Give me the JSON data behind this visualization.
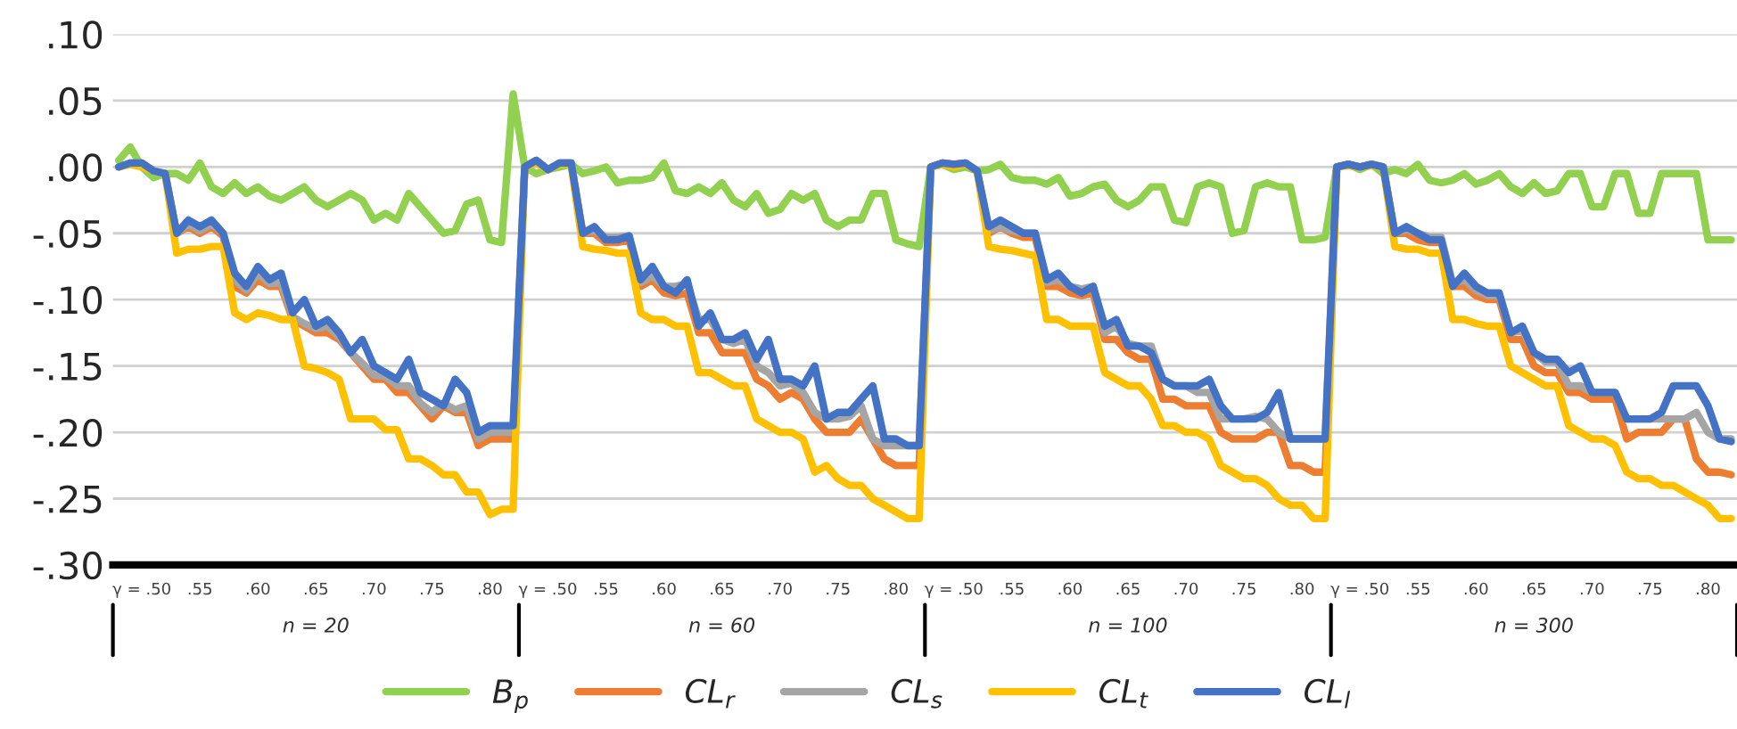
{
  "chart_data": {
    "type": "line",
    "categories": [
      null,
      null,
      "γ = .50",
      null,
      null,
      null,
      null,
      ".55",
      null,
      null,
      null,
      null,
      ".60",
      null,
      null,
      null,
      null,
      ".65",
      null,
      null,
      null,
      null,
      ".70",
      null,
      null,
      null,
      null,
      ".75",
      null,
      null,
      null,
      null,
      ".80",
      null,
      null,
      null,
      null,
      "γ = .50",
      null,
      null,
      null,
      null,
      ".55",
      null,
      null,
      null,
      null,
      ".60",
      null,
      null,
      null,
      null,
      ".65",
      null,
      null,
      null,
      null,
      ".70",
      null,
      null,
      null,
      null,
      ".75",
      null,
      null,
      null,
      null,
      ".80",
      null,
      null,
      null,
      null,
      "γ = .50",
      null,
      null,
      null,
      null,
      ".55",
      null,
      null,
      null,
      null,
      ".60",
      null,
      null,
      null,
      null,
      ".65",
      null,
      null,
      null,
      null,
      ".70",
      null,
      null,
      null,
      null,
      ".75",
      null,
      null,
      null,
      null,
      ".80",
      null,
      null,
      null,
      null,
      "γ = .50",
      null,
      null,
      null,
      null,
      ".55",
      null,
      null,
      null,
      null,
      ".60",
      null,
      null,
      null,
      null,
      ".65",
      null,
      null,
      null,
      null,
      ".70",
      null,
      null,
      null,
      null,
      ".75",
      null,
      null,
      null,
      null,
      ".80",
      null,
      null
    ],
    "ylim": [
      -0.3,
      0.1
    ],
    "yticks": [
      {
        "value": 0.1,
        "label": ".10"
      },
      {
        "value": 0.05,
        "label": ".05"
      },
      {
        "value": 0.0,
        "label": ".00"
      },
      {
        "value": -0.05,
        "label": "-.05"
      },
      {
        "value": -0.1,
        "label": "-.10"
      },
      {
        "value": -0.15,
        "label": "-.15"
      },
      {
        "value": -0.2,
        "label": "-.20"
      },
      {
        "value": -0.25,
        "label": "-.25"
      },
      {
        "value": -0.3,
        "label": "-.30"
      }
    ],
    "grid": "y",
    "legend": "bottom",
    "marker": "none",
    "line_style": "solid",
    "annotations": [
      "n = 20",
      "n = 60",
      "n = 100",
      "n = 300"
    ],
    "series": [
      {
        "name": "B$_{p}$",
        "color": "#92d050",
        "values": [
          0.005,
          0.015,
          0.0,
          -0.008,
          -0.005,
          -0.005,
          -0.01,
          0.003,
          -0.015,
          -0.02,
          -0.012,
          -0.02,
          -0.015,
          -0.022,
          -0.025,
          -0.02,
          -0.015,
          -0.025,
          -0.03,
          -0.025,
          -0.02,
          -0.025,
          -0.04,
          -0.035,
          -0.04,
          -0.02,
          -0.03,
          -0.04,
          -0.05,
          -0.048,
          -0.028,
          -0.025,
          -0.055,
          -0.057,
          0.055,
          0.0,
          -0.005,
          -0.002,
          0.0,
          0.002,
          -0.005,
          -0.003,
          0.0,
          -0.012,
          -0.01,
          -0.01,
          -0.008,
          0.003,
          -0.018,
          -0.02,
          -0.015,
          -0.02,
          -0.012,
          -0.025,
          -0.03,
          -0.02,
          -0.035,
          -0.032,
          -0.02,
          -0.025,
          -0.02,
          -0.04,
          -0.045,
          -0.04,
          -0.04,
          -0.02,
          -0.02,
          -0.055,
          -0.058,
          -0.06,
          0.0,
          0.002,
          -0.002,
          0.0,
          -0.003,
          -0.002,
          0.002,
          -0.008,
          -0.01,
          -0.01,
          -0.013,
          -0.008,
          -0.022,
          -0.02,
          -0.015,
          -0.013,
          -0.025,
          -0.03,
          -0.025,
          -0.015,
          -0.015,
          -0.04,
          -0.042,
          -0.015,
          -0.012,
          -0.015,
          -0.05,
          -0.048,
          -0.015,
          -0.012,
          -0.015,
          -0.015,
          -0.055,
          -0.055,
          -0.053,
          0.0,
          0.002,
          -0.002,
          0.002,
          -0.005,
          -0.002,
          -0.005,
          0.002,
          -0.01,
          -0.012,
          -0.01,
          -0.005,
          -0.013,
          -0.01,
          -0.005,
          -0.015,
          -0.02,
          -0.012,
          -0.02,
          -0.018,
          -0.005,
          -0.005,
          -0.03,
          -0.03,
          -0.005,
          -0.005,
          -0.035,
          -0.035,
          -0.005,
          -0.005,
          -0.005,
          -0.005,
          -0.055,
          -0.055,
          -0.055
        ]
      },
      {
        "name": "CL$_{r}$",
        "color": "#ed7d31",
        "values": [
          null,
          null,
          null,
          null,
          -0.005,
          -0.05,
          -0.045,
          -0.05,
          -0.045,
          -0.052,
          -0.09,
          -0.095,
          -0.085,
          -0.09,
          -0.09,
          -0.115,
          -0.12,
          -0.125,
          -0.125,
          -0.13,
          -0.14,
          -0.15,
          -0.16,
          -0.16,
          -0.17,
          -0.17,
          -0.18,
          -0.19,
          -0.18,
          -0.185,
          -0.185,
          -0.21,
          -0.205,
          -0.205,
          -0.205,
          0.0,
          0.005,
          -0.002,
          0.003,
          0.003,
          -0.05,
          -0.05,
          -0.057,
          -0.057,
          -0.055,
          -0.09,
          -0.085,
          -0.095,
          -0.097,
          -0.095,
          -0.125,
          -0.125,
          -0.14,
          -0.14,
          -0.14,
          -0.16,
          -0.165,
          -0.175,
          -0.17,
          -0.175,
          -0.19,
          -0.2,
          -0.2,
          -0.2,
          -0.19,
          -0.205,
          -0.22,
          -0.225,
          -0.225,
          -0.225,
          0.0,
          0.003,
          0.002,
          0.003,
          -0.003,
          -0.05,
          -0.045,
          -0.05,
          -0.053,
          -0.053,
          -0.09,
          -0.09,
          -0.095,
          -0.097,
          -0.095,
          -0.13,
          -0.13,
          -0.14,
          -0.145,
          -0.145,
          -0.175,
          -0.175,
          -0.18,
          -0.18,
          -0.18,
          -0.2,
          -0.205,
          -0.205,
          -0.205,
          -0.2,
          -0.2,
          -0.225,
          -0.225,
          -0.23,
          -0.23,
          0.0,
          0.002,
          0.0,
          0.002,
          0.0,
          -0.05,
          -0.05,
          -0.055,
          -0.057,
          -0.057,
          -0.09,
          -0.09,
          -0.097,
          -0.1,
          -0.1,
          -0.13,
          -0.13,
          -0.15,
          -0.155,
          -0.155,
          -0.17,
          -0.17,
          -0.175,
          -0.175,
          -0.175,
          -0.205,
          -0.2,
          -0.2,
          -0.2,
          -0.19,
          -0.19,
          -0.22,
          -0.23,
          -0.23,
          -0.232
        ]
      },
      {
        "name": "CL$_{s}$",
        "color": "#a5a5a5",
        "values": [
          0.0,
          0.003,
          0.003,
          -0.003,
          -0.005,
          -0.05,
          -0.043,
          -0.048,
          -0.043,
          -0.05,
          -0.085,
          -0.093,
          -0.08,
          -0.088,
          -0.087,
          -0.113,
          -0.118,
          -0.122,
          -0.12,
          -0.128,
          -0.14,
          -0.148,
          -0.157,
          -0.158,
          -0.165,
          -0.165,
          -0.178,
          -0.185,
          -0.178,
          -0.183,
          -0.18,
          -0.205,
          -0.2,
          -0.2,
          -0.2,
          0.0,
          0.005,
          -0.002,
          0.003,
          0.003,
          -0.05,
          -0.048,
          -0.053,
          -0.053,
          -0.052,
          -0.087,
          -0.082,
          -0.09,
          -0.09,
          -0.088,
          -0.115,
          -0.115,
          -0.13,
          -0.133,
          -0.13,
          -0.15,
          -0.155,
          -0.165,
          -0.163,
          -0.17,
          -0.185,
          -0.19,
          -0.19,
          -0.188,
          -0.18,
          -0.205,
          -0.21,
          -0.21,
          -0.21,
          -0.21,
          0.0,
          0.003,
          0.002,
          0.003,
          -0.003,
          -0.048,
          -0.045,
          -0.048,
          -0.05,
          -0.05,
          -0.087,
          -0.085,
          -0.09,
          -0.092,
          -0.09,
          -0.125,
          -0.12,
          -0.133,
          -0.135,
          -0.135,
          -0.16,
          -0.165,
          -0.165,
          -0.17,
          -0.17,
          -0.19,
          -0.19,
          -0.19,
          -0.188,
          -0.19,
          -0.2,
          -0.205,
          -0.205,
          -0.205,
          -0.205,
          0.0,
          0.002,
          0.0,
          0.002,
          0.0,
          -0.05,
          -0.047,
          -0.05,
          -0.053,
          -0.053,
          -0.088,
          -0.085,
          -0.093,
          -0.097,
          -0.097,
          -0.125,
          -0.123,
          -0.14,
          -0.147,
          -0.147,
          -0.165,
          -0.165,
          -0.17,
          -0.17,
          -0.17,
          -0.19,
          -0.19,
          -0.19,
          -0.19,
          -0.19,
          -0.19,
          -0.185,
          -0.2,
          -0.205,
          -0.205
        ]
      },
      {
        "name": "CL$_{t}$",
        "color": "#ffc000",
        "values": [
          0.0,
          0.002,
          0.0,
          -0.003,
          -0.005,
          -0.065,
          -0.062,
          -0.062,
          -0.06,
          -0.06,
          -0.11,
          -0.115,
          -0.11,
          -0.112,
          -0.115,
          -0.115,
          -0.15,
          -0.152,
          -0.155,
          -0.16,
          -0.19,
          -0.19,
          -0.19,
          -0.198,
          -0.198,
          -0.22,
          -0.22,
          -0.225,
          -0.232,
          -0.232,
          -0.245,
          -0.245,
          -0.262,
          -0.258,
          -0.258,
          0.0,
          0.003,
          -0.002,
          0.002,
          0.002,
          -0.06,
          -0.062,
          -0.063,
          -0.065,
          -0.065,
          -0.11,
          -0.115,
          -0.115,
          -0.12,
          -0.12,
          -0.155,
          -0.155,
          -0.16,
          -0.165,
          -0.165,
          -0.19,
          -0.195,
          -0.2,
          -0.2,
          -0.205,
          -0.23,
          -0.225,
          -0.235,
          -0.24,
          -0.24,
          -0.25,
          -0.255,
          -0.26,
          -0.265,
          -0.265,
          0.0,
          0.002,
          0.0,
          0.002,
          -0.003,
          -0.06,
          -0.062,
          -0.063,
          -0.065,
          -0.067,
          -0.115,
          -0.115,
          -0.12,
          -0.12,
          -0.12,
          -0.155,
          -0.16,
          -0.165,
          -0.165,
          -0.175,
          -0.195,
          -0.195,
          -0.2,
          -0.2,
          -0.205,
          -0.225,
          -0.23,
          -0.235,
          -0.235,
          -0.24,
          -0.25,
          -0.255,
          -0.255,
          -0.265,
          -0.265,
          0.0,
          0.001,
          0.0,
          0.001,
          0.0,
          -0.06,
          -0.062,
          -0.062,
          -0.065,
          -0.065,
          -0.115,
          -0.115,
          -0.118,
          -0.12,
          -0.12,
          -0.15,
          -0.155,
          -0.16,
          -0.165,
          -0.165,
          -0.195,
          -0.2,
          -0.205,
          -0.205,
          -0.21,
          -0.23,
          -0.235,
          -0.235,
          -0.24,
          -0.24,
          -0.245,
          -0.25,
          -0.255,
          -0.265,
          -0.265
        ]
      },
      {
        "name": "CL$_{l}$",
        "color": "#4472c4",
        "values": [
          0.0,
          0.003,
          0.003,
          -0.003,
          -0.005,
          -0.05,
          -0.04,
          -0.045,
          -0.04,
          -0.05,
          -0.08,
          -0.09,
          -0.075,
          -0.085,
          -0.08,
          -0.11,
          -0.1,
          -0.12,
          -0.115,
          -0.125,
          -0.14,
          -0.13,
          -0.15,
          -0.155,
          -0.16,
          -0.145,
          -0.17,
          -0.175,
          -0.18,
          -0.16,
          -0.17,
          -0.2,
          -0.195,
          -0.195,
          -0.195,
          0.0,
          0.005,
          -0.002,
          0.003,
          0.003,
          -0.05,
          -0.045,
          -0.055,
          -0.055,
          -0.052,
          -0.085,
          -0.075,
          -0.09,
          -0.095,
          -0.085,
          -0.12,
          -0.11,
          -0.13,
          -0.13,
          -0.125,
          -0.145,
          -0.13,
          -0.16,
          -0.16,
          -0.165,
          -0.15,
          -0.19,
          -0.185,
          -0.185,
          -0.175,
          -0.165,
          -0.205,
          -0.205,
          -0.21,
          -0.21,
          0.0,
          0.003,
          0.002,
          0.003,
          -0.003,
          -0.045,
          -0.04,
          -0.045,
          -0.05,
          -0.05,
          -0.085,
          -0.08,
          -0.09,
          -0.095,
          -0.09,
          -0.12,
          -0.115,
          -0.135,
          -0.135,
          -0.14,
          -0.16,
          -0.165,
          -0.165,
          -0.165,
          -0.16,
          -0.18,
          -0.19,
          -0.19,
          -0.19,
          -0.185,
          -0.17,
          -0.205,
          -0.205,
          -0.205,
          -0.205,
          0.0,
          0.002,
          0.0,
          0.002,
          0.0,
          -0.05,
          -0.045,
          -0.05,
          -0.055,
          -0.055,
          -0.09,
          -0.08,
          -0.09,
          -0.095,
          -0.095,
          -0.125,
          -0.12,
          -0.14,
          -0.145,
          -0.145,
          -0.155,
          -0.15,
          -0.17,
          -0.17,
          -0.17,
          -0.19,
          -0.19,
          -0.19,
          -0.185,
          -0.165,
          -0.165,
          -0.165,
          -0.18,
          -0.205,
          -0.207
        ]
      }
    ]
  }
}
